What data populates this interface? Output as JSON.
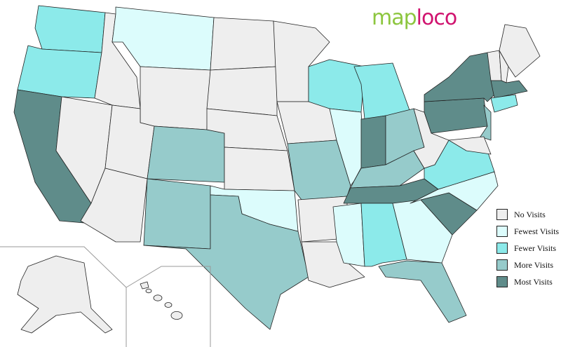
{
  "logo": {
    "part1": "map",
    "part2": "loco"
  },
  "legend": [
    {
      "key": "none",
      "label": "No Visits",
      "color": "#eeeeee"
    },
    {
      "key": "fewest",
      "label": "Fewest Visits",
      "color": "#dcfcfc"
    },
    {
      "key": "fewer",
      "label": "Fewer Visits",
      "color": "#8ceaea"
    },
    {
      "key": "more",
      "label": "More Visits",
      "color": "#96cbcb"
    },
    {
      "key": "most",
      "label": "Most Visits",
      "color": "#5f8c8a"
    }
  ],
  "states": {
    "WA": "fewer",
    "OR": "fewer",
    "CA": "most",
    "NV": "none",
    "ID": "none",
    "MT": "fewest",
    "WY": "none",
    "UT": "none",
    "AZ": "none",
    "CO": "more",
    "NM": "more",
    "ND": "none",
    "SD": "none",
    "NE": "none",
    "KS": "none",
    "OK": "fewest",
    "TX": "more",
    "MN": "none",
    "IA": "none",
    "MO": "more",
    "AR": "none",
    "LA": "none",
    "WI": "fewer",
    "IL": "fewest",
    "MI": "fewer",
    "IN": "most",
    "OH": "more",
    "KY": "more",
    "TN": "most",
    "MS": "fewest",
    "AL": "fewer",
    "GA": "fewest",
    "FL": "more",
    "SC": "most",
    "NC": "fewest",
    "VA": "fewer",
    "WV": "none",
    "PA": "most",
    "NY": "most",
    "VT": "none",
    "NH": "none",
    "ME": "none",
    "MA": "most",
    "CT": "fewer",
    "NJ": "more",
    "MD": "none",
    "AK": "none",
    "HI": "none"
  }
}
